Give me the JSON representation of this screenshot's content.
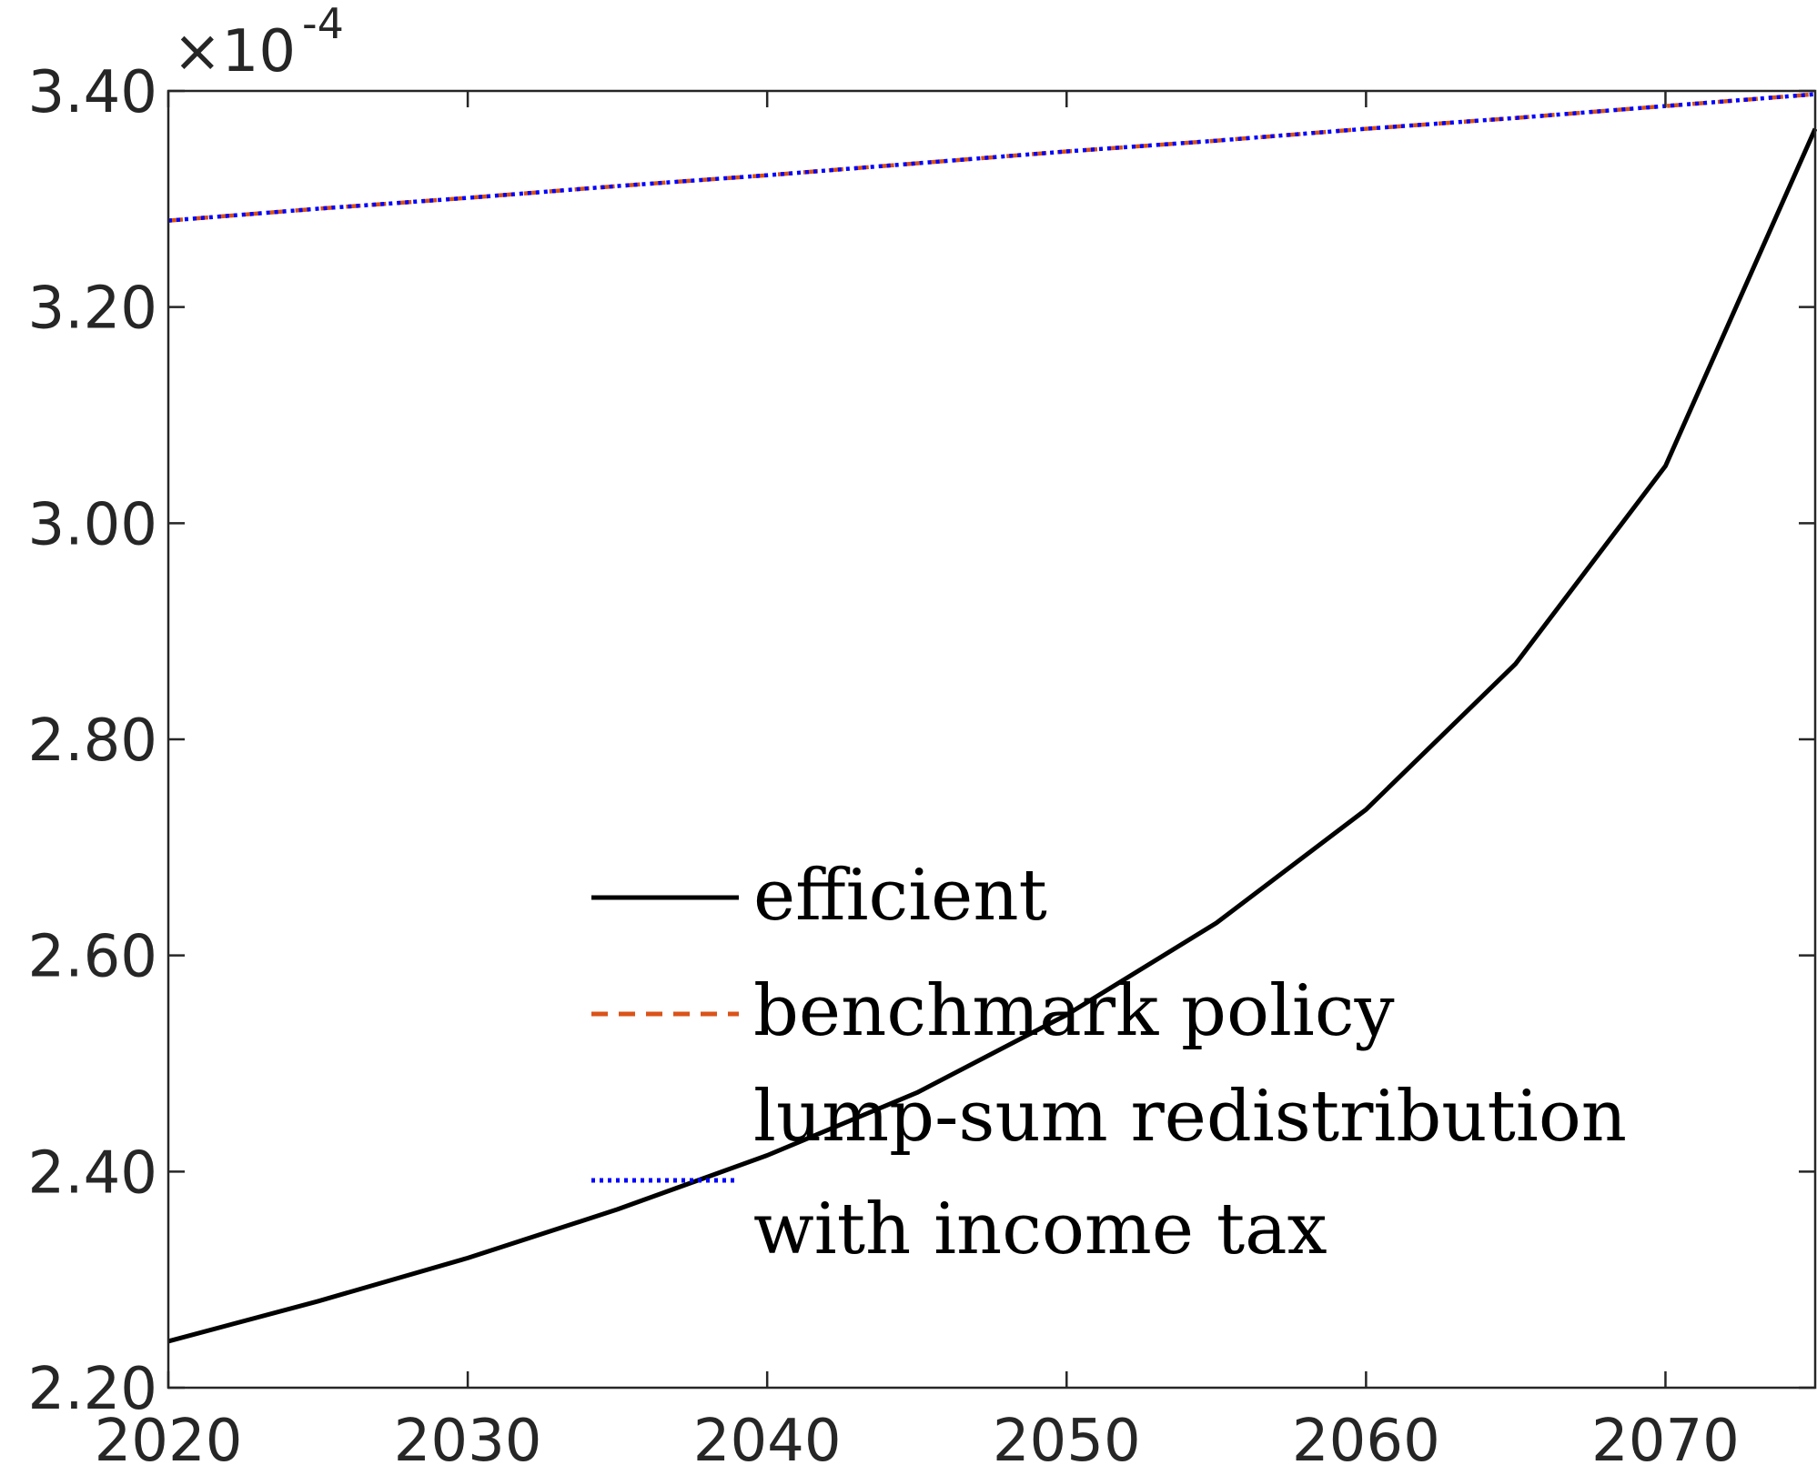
{
  "chart_data": {
    "type": "line",
    "x": [
      2020,
      2025,
      2030,
      2035,
      2040,
      2045,
      2050,
      2055,
      2060,
      2065,
      2070,
      2075
    ],
    "series": [
      {
        "name": "efficient",
        "color": "#000000",
        "style": "solid",
        "values": [
          2.243,
          2.28,
          2.32,
          2.365,
          2.415,
          2.473,
          2.545,
          2.63,
          2.735,
          2.87,
          3.053,
          3.365
        ]
      },
      {
        "name": "benchmark policy",
        "color": "#D95319",
        "style": "dashed",
        "values": [
          3.28,
          3.291,
          3.301,
          3.312,
          3.322,
          3.333,
          3.344,
          3.354,
          3.365,
          3.375,
          3.386,
          3.397
        ]
      },
      {
        "name": "lump-sum redistribution with income tax",
        "legend_lines": [
          "lump-sum redistribution",
          "with income tax"
        ],
        "color": "#0000FF",
        "style": "dotted",
        "values": [
          3.28,
          3.291,
          3.301,
          3.312,
          3.322,
          3.333,
          3.344,
          3.354,
          3.365,
          3.375,
          3.386,
          3.397
        ]
      }
    ],
    "xlim": [
      2020,
      2075
    ],
    "ylim": [
      2.2,
      3.4
    ],
    "x_ticks": [
      "2020",
      "2030",
      "2040",
      "2050",
      "2060",
      "2070"
    ],
    "y_ticks": [
      "2.20",
      "2.40",
      "2.60",
      "2.80",
      "3.00",
      "3.20",
      "3.40"
    ],
    "y_exponent": {
      "base": "×10",
      "power": "-4"
    },
    "grid": false,
    "legend_position": "lower-right"
  }
}
